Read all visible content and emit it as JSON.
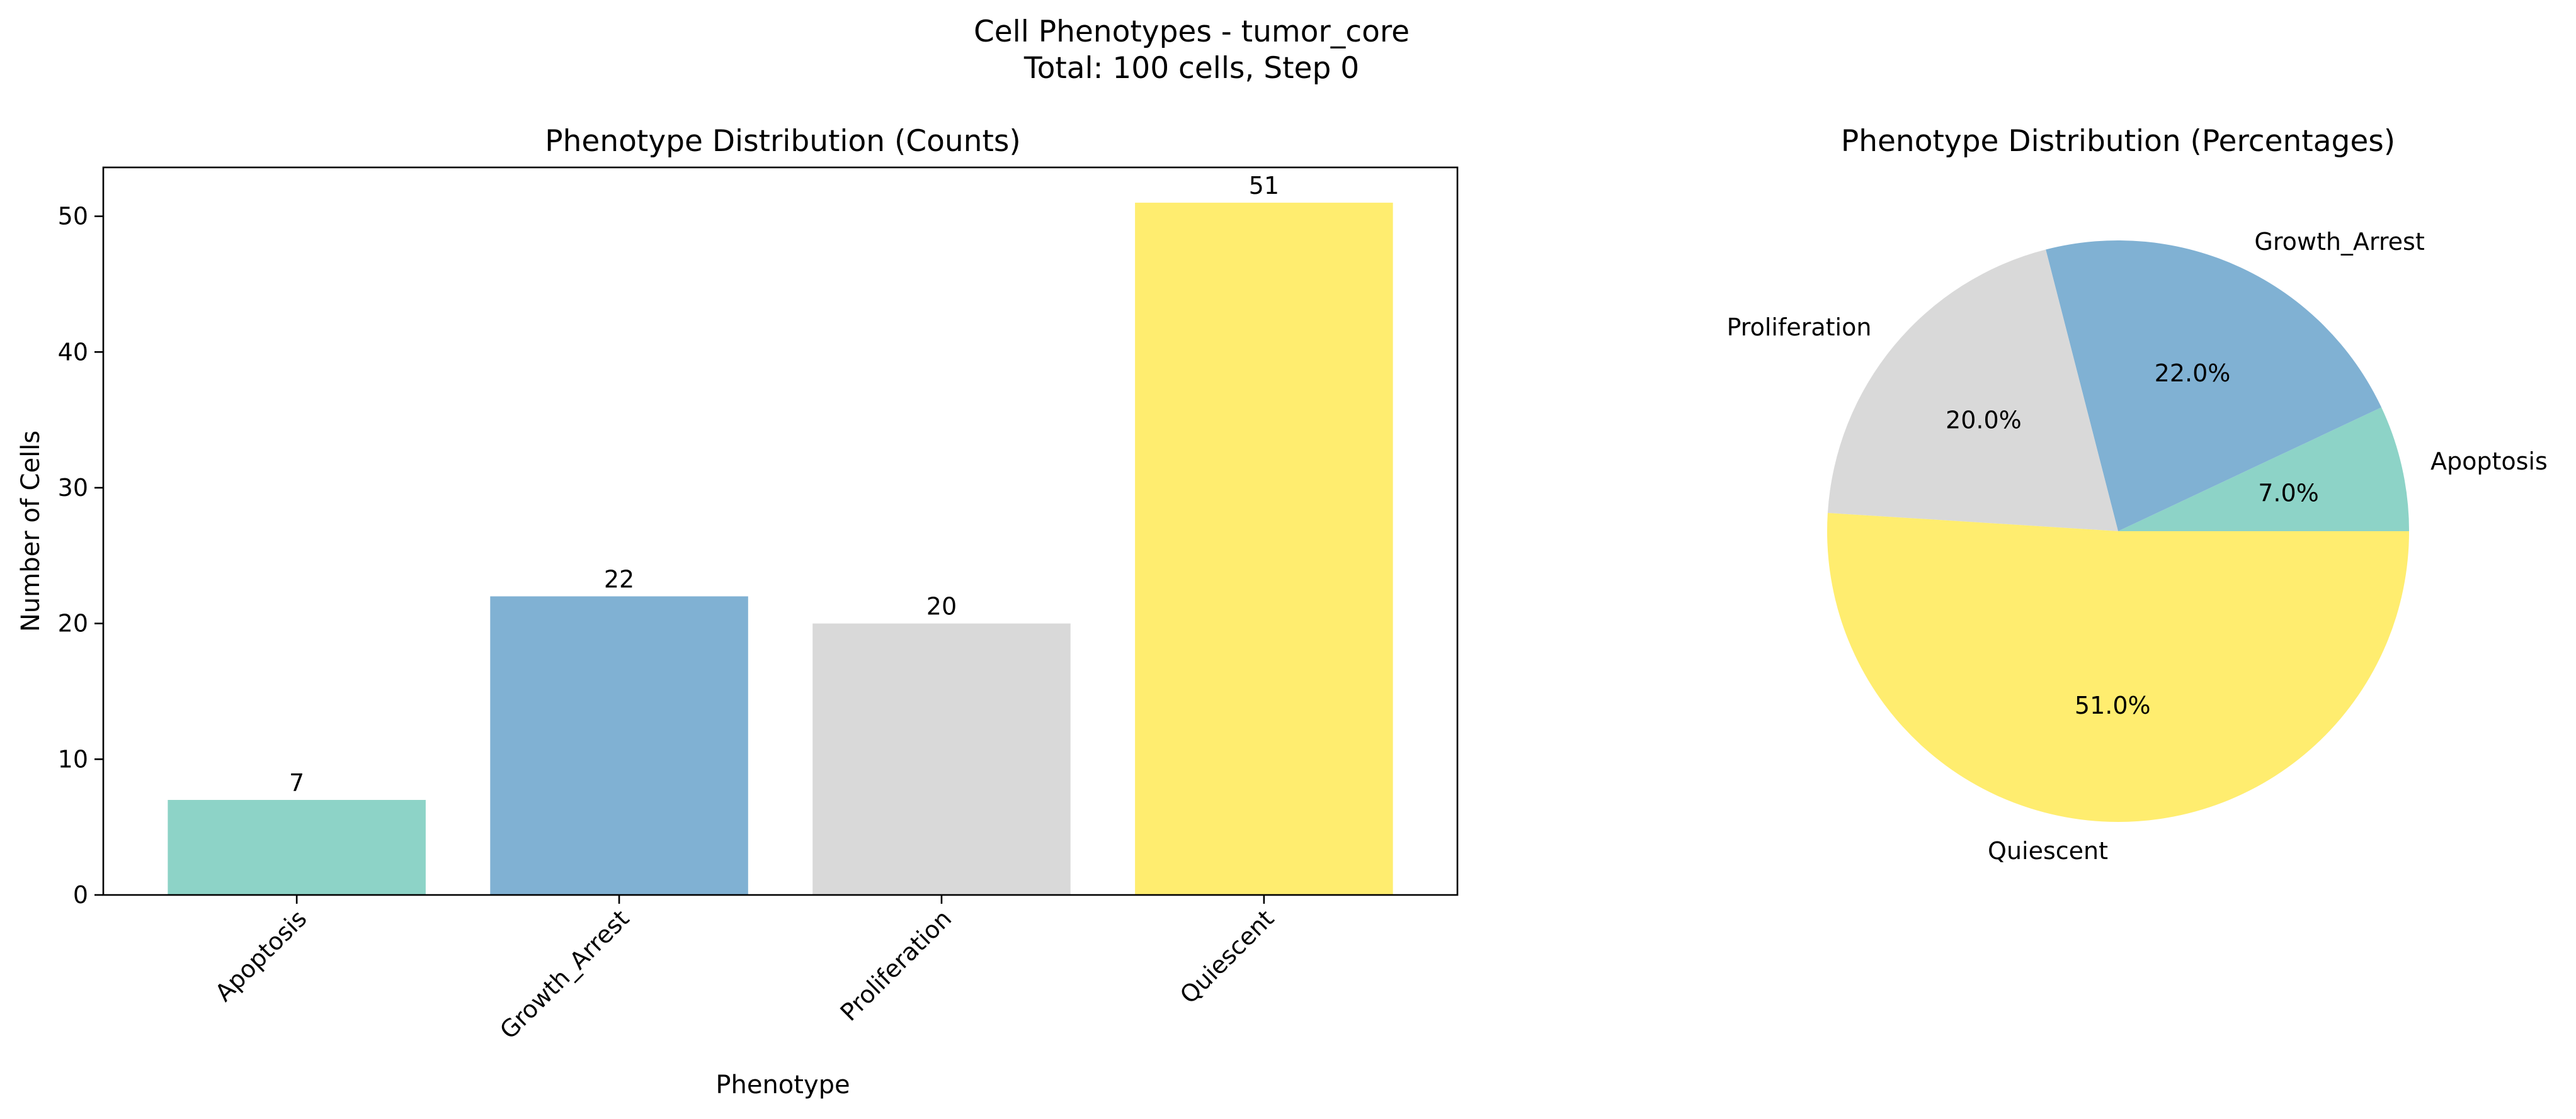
{
  "figure": {
    "suptitle_line1": "Cell Phenotypes - tumor_core",
    "suptitle_line2": "Total: 100 cells, Step 0"
  },
  "chart_data": [
    {
      "type": "bar",
      "title": "Phenotype Distribution (Counts)",
      "xlabel": "Phenotype",
      "ylabel": "Number of Cells",
      "categories": [
        "Apoptosis",
        "Growth_Arrest",
        "Proliferation",
        "Quiescent"
      ],
      "values": [
        7,
        22,
        20,
        51
      ],
      "data_labels": [
        "7",
        "22",
        "20",
        "51"
      ],
      "colors": [
        "#8dd3c7",
        "#80b1d3",
        "#d9d9d9",
        "#ffed6f"
      ],
      "ylim": [
        0,
        53.6
      ],
      "yticks": [
        0,
        10,
        20,
        30,
        40,
        50
      ],
      "ytick_labels": [
        "0",
        "10",
        "20",
        "30",
        "40",
        "50"
      ],
      "grid": false,
      "legend": "none"
    },
    {
      "type": "pie",
      "title": "Phenotype Distribution (Percentages)",
      "categories": [
        "Apoptosis",
        "Growth_Arrest",
        "Proliferation",
        "Quiescent"
      ],
      "values": [
        7.0,
        22.0,
        20.0,
        51.0
      ],
      "percent_labels": [
        "7.0%",
        "22.0%",
        "20.0%",
        "51.0%"
      ],
      "colors": [
        "#8dd3c7",
        "#80b1d3",
        "#d9d9d9",
        "#ffed6f"
      ],
      "start_angle_deg": 0,
      "direction": "counterclockwise"
    }
  ]
}
